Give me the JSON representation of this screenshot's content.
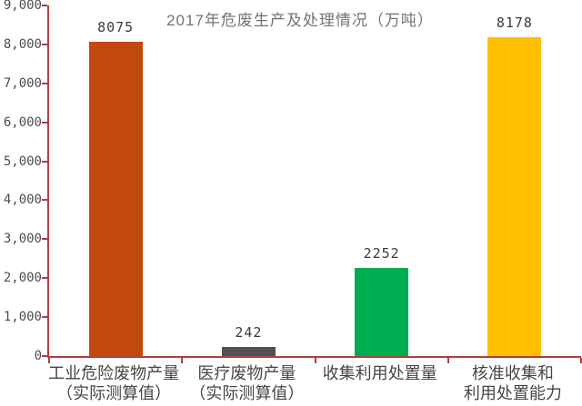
{
  "chart_data": {
    "type": "bar",
    "title": "2017年危废生产及处理情况（万吨）",
    "categories": [
      "工业危险废物产量（实际测算值）",
      "医疗废物产量（实际测算值）",
      "收集利用处置量",
      "核准收集和利用处置能力"
    ],
    "category_label_lines": [
      [
        "工业危险废物产量",
        "（实际测算值）"
      ],
      [
        "医疗废物产量",
        "（实际测算值）"
      ],
      [
        "收集利用处置量"
      ],
      [
        "核准收集和",
        "利用处置能力"
      ]
    ],
    "values": [
      8075,
      242,
      2252,
      8178
    ],
    "value_labels": [
      "8075",
      "242",
      "2252",
      "8178"
    ],
    "bar_colors": [
      "#C2490D",
      "#544F57",
      "#00AC50",
      "#FFC000"
    ],
    "xlabel": "",
    "ylabel": "",
    "ylim": [
      0,
      9000
    ],
    "y_tick_step": 1000,
    "y_tick_labels": [
      "0",
      "1,000",
      "2,000",
      "3,000",
      "4,000",
      "5,000",
      "6,000",
      "7,000",
      "8,000",
      "9,000"
    ],
    "grid": false,
    "legend_position": "none",
    "colors": {
      "axis": "#AF3E3E",
      "title_text": "#737373",
      "tick_label_text": "#4D4D4D",
      "value_label_text": "#3A3A3A",
      "category_label_text": "#464646",
      "background": "#FFFFFF"
    }
  }
}
